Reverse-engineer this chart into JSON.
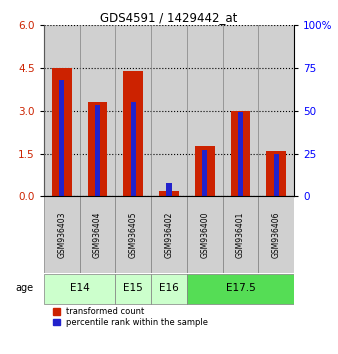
{
  "title": "GDS4591 / 1429442_at",
  "samples": [
    "GSM936403",
    "GSM936404",
    "GSM936405",
    "GSM936402",
    "GSM936400",
    "GSM936401",
    "GSM936406"
  ],
  "red_values": [
    4.5,
    3.3,
    4.4,
    0.2,
    1.75,
    3.0,
    1.6
  ],
  "blue_percentiles": [
    68,
    53,
    55,
    8,
    27,
    49,
    25
  ],
  "ylim_left": [
    0,
    6
  ],
  "ylim_right": [
    0,
    100
  ],
  "yticks_left": [
    0,
    1.5,
    3,
    4.5,
    6
  ],
  "yticks_right": [
    0,
    25,
    50,
    75,
    100
  ],
  "ytick_labels_right": [
    "0",
    "25",
    "50",
    "75",
    "100%"
  ],
  "age_groups": [
    {
      "label": "E14",
      "start": 0,
      "end": 2,
      "color": "#ccffcc"
    },
    {
      "label": "E15",
      "start": 2,
      "end": 3,
      "color": "#ccffcc"
    },
    {
      "label": "E16",
      "start": 3,
      "end": 4,
      "color": "#ccffcc"
    },
    {
      "label": "E17.5",
      "start": 4,
      "end": 7,
      "color": "#55dd55"
    }
  ],
  "bar_color_red": "#cc2200",
  "bar_color_blue": "#2222cc",
  "cell_bg_color": "#d0d0d0",
  "legend_red": "transformed count",
  "legend_blue": "percentile rank within the sample"
}
